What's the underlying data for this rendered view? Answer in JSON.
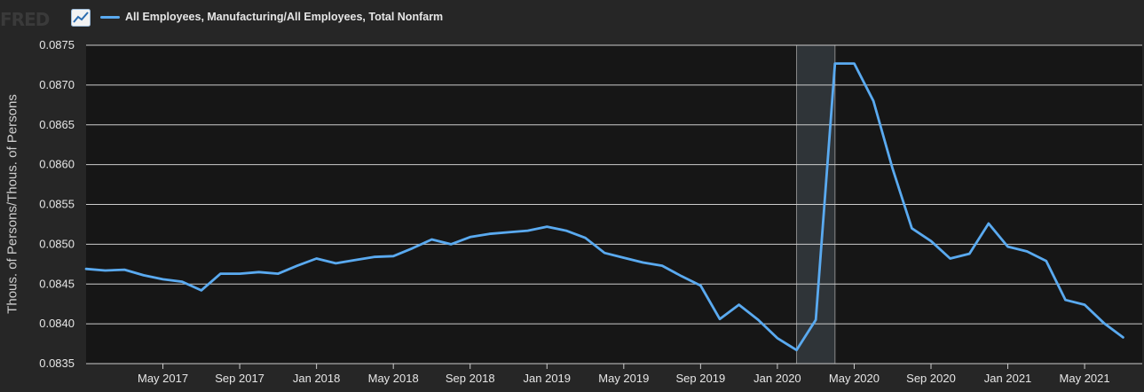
{
  "header": {
    "logo_text": "FRED",
    "logo_icon": "chart-line-icon"
  },
  "colors": {
    "background": "#262626",
    "plot_background": "#161616",
    "grid": "#cccccc",
    "series": "#5aaaf0",
    "recession": "#2f3438"
  },
  "chart_data": {
    "type": "line",
    "ylabel": "Thous. of Persons/Thous. of Persons",
    "xlabel": "",
    "ylim": [
      0.0835,
      0.0875
    ],
    "yticks": [
      "0.0835",
      "0.0840",
      "0.0845",
      "0.0850",
      "0.0855",
      "0.0860",
      "0.0865",
      "0.0870",
      "0.0875"
    ],
    "xlim": [
      "2017-01",
      "2021-08"
    ],
    "xticks": [
      {
        "date": "2017-05",
        "label": "May 2017"
      },
      {
        "date": "2017-09",
        "label": "Sep 2017"
      },
      {
        "date": "2018-01",
        "label": "Jan 2018"
      },
      {
        "date": "2018-05",
        "label": "May 2018"
      },
      {
        "date": "2018-09",
        "label": "Sep 2018"
      },
      {
        "date": "2019-01",
        "label": "Jan 2019"
      },
      {
        "date": "2019-05",
        "label": "May 2019"
      },
      {
        "date": "2019-09",
        "label": "Sep 2019"
      },
      {
        "date": "2020-01",
        "label": "Jan 2020"
      },
      {
        "date": "2020-05",
        "label": "May 2020"
      },
      {
        "date": "2020-09",
        "label": "Sep 2020"
      },
      {
        "date": "2021-01",
        "label": "Jan 2021"
      },
      {
        "date": "2021-05",
        "label": "May 2021"
      }
    ],
    "grid": true,
    "legend_position": "top-left",
    "recession_shading": [
      {
        "start": "2020-02",
        "end": "2020-04"
      }
    ],
    "series": [
      {
        "name": "All Employees, Manufacturing/All Employees, Total Nonfarm",
        "points": [
          [
            "2017-01",
            0.08469
          ],
          [
            "2017-02",
            0.08467
          ],
          [
            "2017-03",
            0.08468
          ],
          [
            "2017-04",
            0.08461
          ],
          [
            "2017-05",
            0.08456
          ],
          [
            "2017-06",
            0.08453
          ],
          [
            "2017-07",
            0.08442
          ],
          [
            "2017-08",
            0.08463
          ],
          [
            "2017-09",
            0.08463
          ],
          [
            "2017-10",
            0.08465
          ],
          [
            "2017-11",
            0.08463
          ],
          [
            "2017-12",
            0.08473
          ],
          [
            "2018-01",
            0.08482
          ],
          [
            "2018-02",
            0.08476
          ],
          [
            "2018-03",
            0.0848
          ],
          [
            "2018-04",
            0.08484
          ],
          [
            "2018-05",
            0.08485
          ],
          [
            "2018-06",
            0.08495
          ],
          [
            "2018-07",
            0.08506
          ],
          [
            "2018-08",
            0.085
          ],
          [
            "2018-09",
            0.08509
          ],
          [
            "2018-10",
            0.08513
          ],
          [
            "2018-11",
            0.08515
          ],
          [
            "2018-12",
            0.08517
          ],
          [
            "2019-01",
            0.08522
          ],
          [
            "2019-02",
            0.08517
          ],
          [
            "2019-03",
            0.08508
          ],
          [
            "2019-04",
            0.08489
          ],
          [
            "2019-05",
            0.08483
          ],
          [
            "2019-06",
            0.08477
          ],
          [
            "2019-07",
            0.08473
          ],
          [
            "2019-08",
            0.0846
          ],
          [
            "2019-09",
            0.08448
          ],
          [
            "2019-10",
            0.08406
          ],
          [
            "2019-11",
            0.08424
          ],
          [
            "2019-12",
            0.08405
          ],
          [
            "2020-01",
            0.08382
          ],
          [
            "2020-02",
            0.08367
          ],
          [
            "2020-03",
            0.08405
          ],
          [
            "2020-04",
            0.08727
          ],
          [
            "2020-05",
            0.08727
          ],
          [
            "2020-06",
            0.0868
          ],
          [
            "2020-07",
            0.08595
          ],
          [
            "2020-08",
            0.0852
          ],
          [
            "2020-09",
            0.08504
          ],
          [
            "2020-10",
            0.08482
          ],
          [
            "2020-11",
            0.08488
          ],
          [
            "2020-12",
            0.08526
          ],
          [
            "2021-01",
            0.08497
          ],
          [
            "2021-02",
            0.08491
          ],
          [
            "2021-03",
            0.08479
          ],
          [
            "2021-04",
            0.0843
          ],
          [
            "2021-05",
            0.08424
          ],
          [
            "2021-06",
            0.08401
          ],
          [
            "2021-07",
            0.08383
          ]
        ]
      }
    ]
  }
}
